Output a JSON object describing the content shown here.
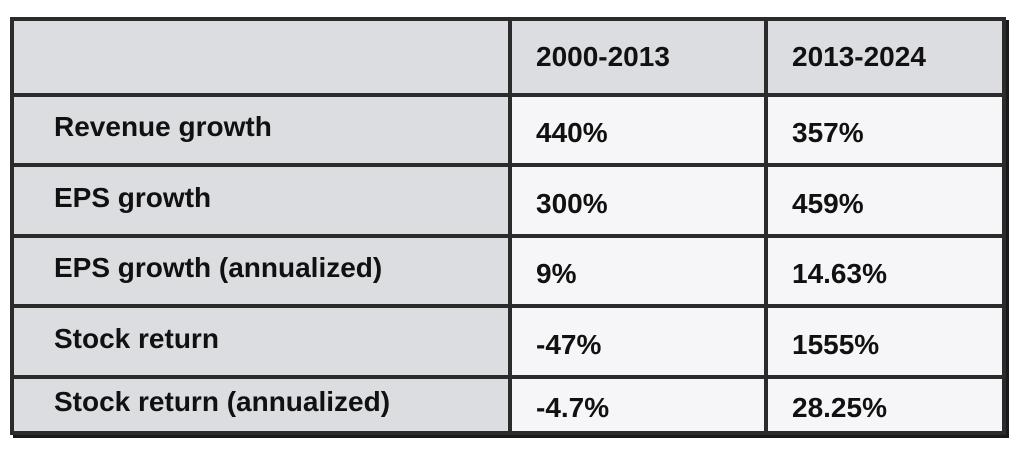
{
  "table": {
    "header": [
      "2000-2013",
      "2013-2024"
    ],
    "rows": [
      [
        "Revenue growth",
        "440%",
        "357%"
      ],
      [
        "EPS growth",
        "300%",
        "459%"
      ],
      [
        "EPS growth (annualized)",
        "9%",
        "14.63%"
      ],
      [
        "Stock return",
        "-47%",
        "1555%"
      ],
      [
        "Stock return (annualized)",
        "-4.7%",
        "28.25%"
      ]
    ]
  }
}
